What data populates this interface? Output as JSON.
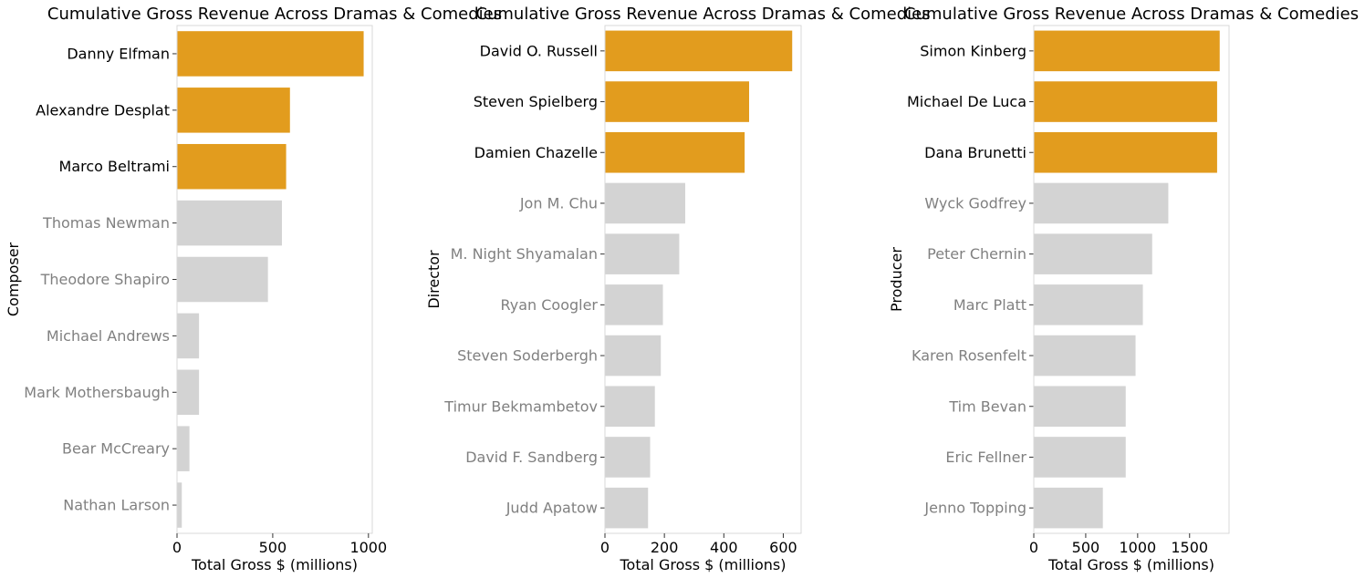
{
  "chart_data": [
    {
      "type": "bar",
      "orientation": "horizontal",
      "title": "Cumulative Gross Revenue Across Dramas & Comedies",
      "xlabel": "Total Gross $ (millions)",
      "ylabel": "Composer",
      "xlim": [
        0,
        1020
      ],
      "xticks": [
        0,
        500,
        1000
      ],
      "categories": [
        "Danny Elfman",
        "Alexandre Desplat",
        "Marco Beltrami",
        "Thomas Newman",
        "Theodore Shapiro",
        "Michael Andrews",
        "Mark Mothersbaugh",
        "Bear McCreary",
        "Nathan Larson"
      ],
      "values": [
        975,
        590,
        570,
        548,
        475,
        115,
        115,
        65,
        25
      ],
      "highlight_count": 3,
      "highlight_color": "#e29c1e",
      "base_color": "#d3d3d3",
      "highlight_label_color": "#000000",
      "base_label_color": "#808080",
      "grid": false
    },
    {
      "type": "bar",
      "orientation": "horizontal",
      "title": "Cumulative Gross Revenue Across Dramas & Comedies",
      "xlabel": "Total Gross $ (millions)",
      "ylabel": "Director",
      "xlim": [
        0,
        660
      ],
      "xticks": [
        0,
        200,
        400,
        600
      ],
      "categories": [
        "David O. Russell",
        "Steven Spielberg",
        "Damien Chazelle",
        "Jon M. Chu",
        "M. Night Shyamalan",
        "Ryan Coogler",
        "Steven Soderbergh",
        "Timur Bekmambetov",
        "David F. Sandberg",
        "Judd Apatow"
      ],
      "values": [
        630,
        485,
        470,
        270,
        250,
        195,
        188,
        168,
        152,
        145
      ],
      "highlight_count": 3,
      "highlight_color": "#e29c1e",
      "base_color": "#d3d3d3",
      "highlight_label_color": "#000000",
      "base_label_color": "#808080",
      "grid": false
    },
    {
      "type": "bar",
      "orientation": "horizontal",
      "title": "Cumulative Gross Revenue Across Dramas & Comedies",
      "xlabel": "Total Gross $ (millions)",
      "ylabel": "Producer",
      "xlim": [
        0,
        1880
      ],
      "xticks": [
        0,
        500,
        1000,
        1500
      ],
      "categories": [
        "Simon Kinberg",
        "Michael De Luca",
        "Dana Brunetti",
        "Wyck Godfrey",
        "Peter Chernin",
        "Marc Platt",
        "Karen Rosenfelt",
        "Tim Bevan",
        "Eric Fellner",
        "Jenno Topping"
      ],
      "values": [
        1790,
        1765,
        1765,
        1295,
        1140,
        1050,
        980,
        885,
        885,
        665
      ],
      "highlight_count": 3,
      "highlight_color": "#e29c1e",
      "base_color": "#d3d3d3",
      "highlight_label_color": "#000000",
      "base_label_color": "#808080",
      "grid": false
    }
  ]
}
